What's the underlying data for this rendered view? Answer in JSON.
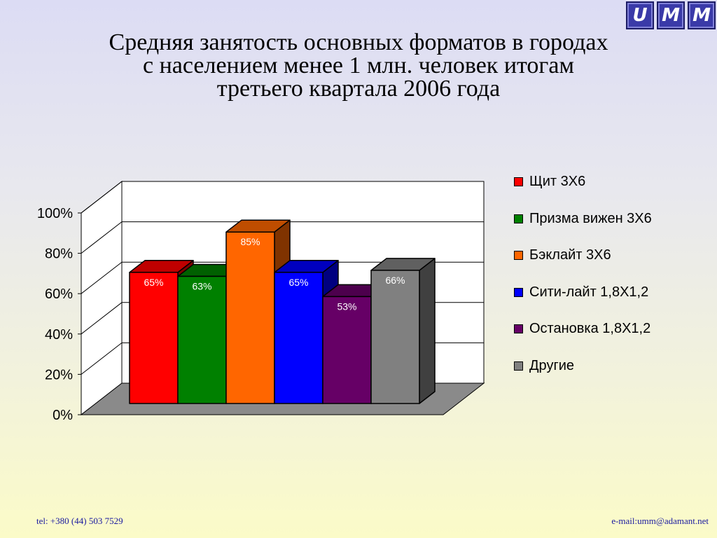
{
  "logo": {
    "letters": [
      "U",
      "M",
      "M"
    ]
  },
  "title_lines": [
    "Средняя занятость основных форматов в городах",
    "с населением менее 1 млн. человек итогам",
    "третьего квартала 2006 года"
  ],
  "chart_data": {
    "type": "bar",
    "title": "Средняя занятость основных форматов в городах с населением менее 1 млн. человек итогам третьего квартала 2006 года",
    "categories": [
      "Щит 3Х6",
      "Призма вижен 3Х6",
      "Бэклайт 3Х6",
      "Сити-лайт 1,8Х1,2",
      "Остановка 1,8Х1,2",
      "Другие"
    ],
    "values": [
      65,
      63,
      85,
      65,
      53,
      66
    ],
    "value_labels": [
      "65%",
      "63%",
      "85%",
      "65%",
      "53%",
      "66%"
    ],
    "colors": [
      "#ff0000",
      "#008000",
      "#ff6600",
      "#0000ff",
      "#660066",
      "#808080"
    ],
    "ylim": [
      0,
      100
    ],
    "yticks": [
      "0%",
      "20%",
      "40%",
      "60%",
      "80%",
      "100%"
    ],
    "grid": true,
    "three_d": true,
    "legend_position": "right"
  },
  "footer": {
    "phone": "tel: +380 (44) 503 7529",
    "email": "e-mail:umm@adamant.net"
  }
}
